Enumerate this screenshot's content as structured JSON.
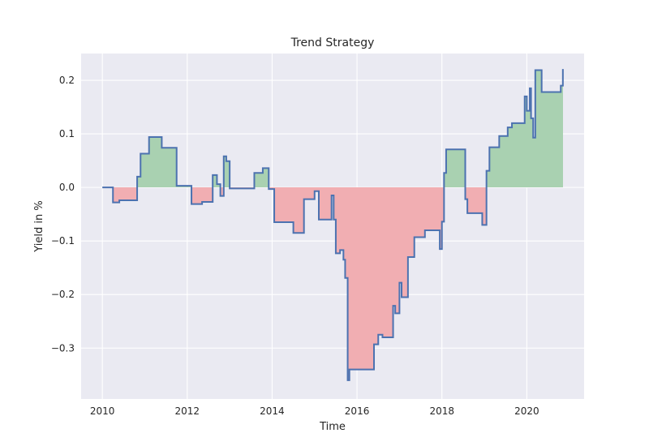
{
  "chart_data": {
    "type": "line",
    "title": "Trend Strategy",
    "xlabel": "Time",
    "ylabel": "Yield in %",
    "xlim": [
      2009.5,
      2021.35
    ],
    "ylim": [
      -0.395,
      0.25
    ],
    "x_ticks": [
      2010,
      2012,
      2014,
      2016,
      2018,
      2020
    ],
    "x_tick_labels": [
      "2010",
      "2012",
      "2014",
      "2016",
      "2018",
      "2020"
    ],
    "y_ticks": [
      0.2,
      0.1,
      0.0,
      -0.1,
      -0.2,
      -0.3
    ],
    "y_tick_labels": [
      "0.2",
      "0.1",
      "0.0",
      "−0.1",
      "−0.2",
      "−0.3"
    ],
    "grid": true,
    "legend": "none",
    "step": "post",
    "colors": {
      "background": "#eaeaf2",
      "grid": "#ffffff",
      "line": "#4c72b0",
      "fill_positive": "#a9d1b1",
      "fill_negative": "#f1aeb2"
    },
    "fill_between_zero": {
      "positive_color": "green",
      "negative_color": "red"
    },
    "series": [
      {
        "x": [
          2010.0,
          2010.25,
          2010.4,
          2010.82,
          2010.9,
          2011.1,
          2011.4,
          2011.75,
          2012.1,
          2012.35,
          2012.6,
          2012.7,
          2012.78,
          2012.86,
          2012.92,
          2013.0,
          2013.58,
          2013.78,
          2013.92,
          2014.05,
          2014.5,
          2014.75,
          2015.0,
          2015.1,
          2015.4,
          2015.45,
          2015.5,
          2015.6,
          2015.68,
          2015.72,
          2015.78,
          2015.82,
          2016.4,
          2016.5,
          2016.6,
          2016.85,
          2016.9,
          2017.0,
          2017.05,
          2017.2,
          2017.35,
          2017.6,
          2017.95,
          2018.0,
          2018.05,
          2018.1,
          2018.55,
          2018.6,
          2018.95,
          2019.05,
          2019.12,
          2019.35,
          2019.55,
          2019.65,
          2019.95,
          2020.0,
          2020.07,
          2020.1,
          2020.15,
          2020.2,
          2020.35,
          2020.75,
          2020.8,
          2020.85
        ],
        "values": [
          0.0,
          -0.028,
          -0.024,
          0.02,
          0.063,
          0.094,
          0.074,
          0.003,
          -0.031,
          -0.027,
          0.023,
          0.006,
          -0.016,
          0.058,
          0.049,
          -0.002,
          0.027,
          0.036,
          -0.003,
          -0.065,
          -0.085,
          -0.022,
          -0.007,
          -0.06,
          -0.015,
          -0.06,
          -0.123,
          -0.117,
          -0.135,
          -0.169,
          -0.36,
          -0.34,
          -0.293,
          -0.275,
          -0.28,
          -0.221,
          -0.235,
          -0.178,
          -0.205,
          -0.13,
          -0.093,
          -0.08,
          -0.115,
          -0.064,
          0.027,
          0.071,
          -0.022,
          -0.048,
          -0.07,
          0.031,
          0.075,
          0.096,
          0.112,
          0.12,
          0.17,
          0.143,
          0.185,
          0.129,
          0.093,
          0.219,
          0.178,
          0.178,
          0.19,
          0.221
        ]
      }
    ]
  }
}
